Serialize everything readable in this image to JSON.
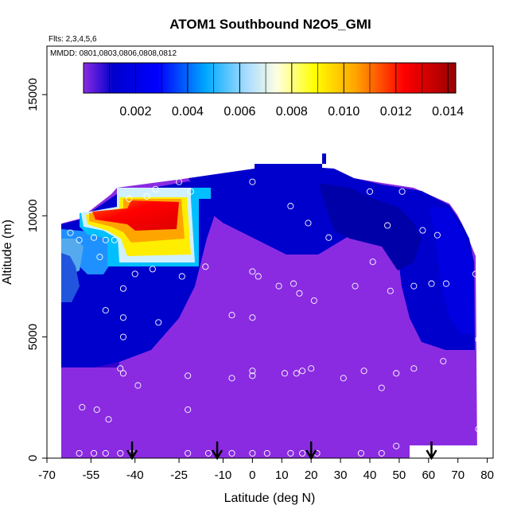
{
  "chart_data": {
    "type": "heatmap",
    "title": "ATOM1 Southbound N2O5_GMI",
    "subtitle_flights": "Flts: 2,3,4,5,6",
    "subtitle_dates": "MMDD: 0801,0803,0806,0808,0812",
    "xlabel": "Latitude (deg N)",
    "ylabel": "Altitude (m)",
    "xlim": [
      -70,
      82
    ],
    "ylim": [
      0,
      17000
    ],
    "x_ticks": [
      -70,
      -55,
      -40,
      -25,
      -10,
      0,
      10,
      20,
      30,
      40,
      50,
      60,
      70,
      80
    ],
    "x_tick_labels": [
      "-70",
      "-55",
      "-40",
      "-25",
      "-10",
      "0",
      "10",
      "20",
      "30",
      "40",
      "50",
      "60",
      "70",
      "80"
    ],
    "y_ticks": [
      0,
      5000,
      10000,
      15000
    ],
    "y_tick_labels": [
      "0",
      "5000",
      "10000",
      "15000"
    ],
    "colorbar": {
      "range": [
        0,
        0.0143
      ],
      "ticks": [
        0.002,
        0.004,
        0.006,
        0.008,
        0.01,
        0.012,
        0.014
      ],
      "tick_labels": [
        "0.002",
        "0.004",
        "0.006",
        "0.008",
        "0.010",
        "0.012",
        "0.014"
      ],
      "colors": [
        "#8a2be2",
        "#0000cd",
        "#1e90ff",
        "#00bfff",
        "#ffffff",
        "#ffff00",
        "#ffa500",
        "#ff0000",
        "#8b0000"
      ]
    },
    "colors": {
      "background_field": "#8a2be2",
      "low_blue": "#0000cd",
      "mid_blue": "#1e90ff",
      "high_red": "#ff0000"
    },
    "arrows_latitude": [
      -41,
      -12,
      20,
      61
    ],
    "samples": [
      [
        -67,
        200
      ],
      [
        -59,
        200
      ],
      [
        -54,
        200
      ],
      [
        -50,
        200
      ],
      [
        -45,
        200
      ],
      [
        -41,
        200
      ],
      [
        -22,
        200
      ],
      [
        -15,
        200
      ],
      [
        -7,
        200
      ],
      [
        0,
        200
      ],
      [
        5,
        200
      ],
      [
        13,
        200
      ],
      [
        17,
        200
      ],
      [
        22,
        200
      ],
      [
        37,
        200
      ],
      [
        44,
        200
      ],
      [
        49,
        500
      ],
      [
        56,
        200
      ],
      [
        -69,
        3000
      ],
      [
        -58,
        2100
      ],
      [
        -53,
        2000
      ],
      [
        -49,
        1600
      ],
      [
        -45,
        3700
      ],
      [
        -44,
        3500
      ],
      [
        -39,
        3000
      ],
      [
        -22,
        3400
      ],
      [
        -22,
        2000
      ],
      [
        -7,
        3300
      ],
      [
        0,
        3600
      ],
      [
        0,
        3400
      ],
      [
        11,
        3500
      ],
      [
        15,
        3500
      ],
      [
        17,
        3600
      ],
      [
        20,
        3700
      ],
      [
        31,
        3300
      ],
      [
        38,
        3600
      ],
      [
        44,
        2900
      ],
      [
        49,
        3500
      ],
      [
        55,
        3700
      ],
      [
        65,
        4000
      ],
      [
        78,
        3000
      ],
      [
        78,
        3400
      ],
      [
        77,
        1200
      ],
      [
        78,
        800
      ],
      [
        -44,
        5000
      ],
      [
        -44,
        5800
      ],
      [
        -50,
        6100
      ],
      [
        -44,
        7000
      ],
      [
        -40,
        7600
      ],
      [
        -34,
        7800
      ],
      [
        -32,
        5600
      ],
      [
        -24,
        7500
      ],
      [
        -16,
        7900
      ],
      [
        -7,
        5900
      ],
      [
        0,
        5800
      ],
      [
        0,
        7700
      ],
      [
        2,
        7500
      ],
      [
        9,
        7100
      ],
      [
        14,
        7200
      ],
      [
        16,
        6800
      ],
      [
        21,
        6500
      ],
      [
        35,
        7100
      ],
      [
        41,
        8100
      ],
      [
        47,
        6900
      ],
      [
        55,
        7100
      ],
      [
        61,
        7200
      ],
      [
        66,
        7200
      ],
      [
        76,
        7600
      ],
      [
        77,
        4900
      ],
      [
        78,
        5600
      ],
      [
        -62,
        9300
      ],
      [
        -59,
        9000
      ],
      [
        -54,
        9100
      ],
      [
        -52,
        8300
      ],
      [
        -50,
        9000
      ],
      [
        -47,
        9000
      ],
      [
        -42,
        10700
      ],
      [
        -36,
        10800
      ],
      [
        -33,
        11100
      ],
      [
        -25,
        11400
      ],
      [
        -21,
        11000
      ],
      [
        -4,
        12000
      ],
      [
        0,
        11400
      ],
      [
        13,
        10400
      ],
      [
        19,
        9700
      ],
      [
        26,
        9100
      ],
      [
        34,
        12000
      ],
      [
        40,
        11000
      ],
      [
        46,
        9600
      ],
      [
        51,
        11000
      ],
      [
        58,
        9400
      ],
      [
        63,
        9200
      ],
      [
        67,
        11300
      ],
      [
        72,
        9900
      ],
      [
        77,
        9800
      ]
    ]
  }
}
